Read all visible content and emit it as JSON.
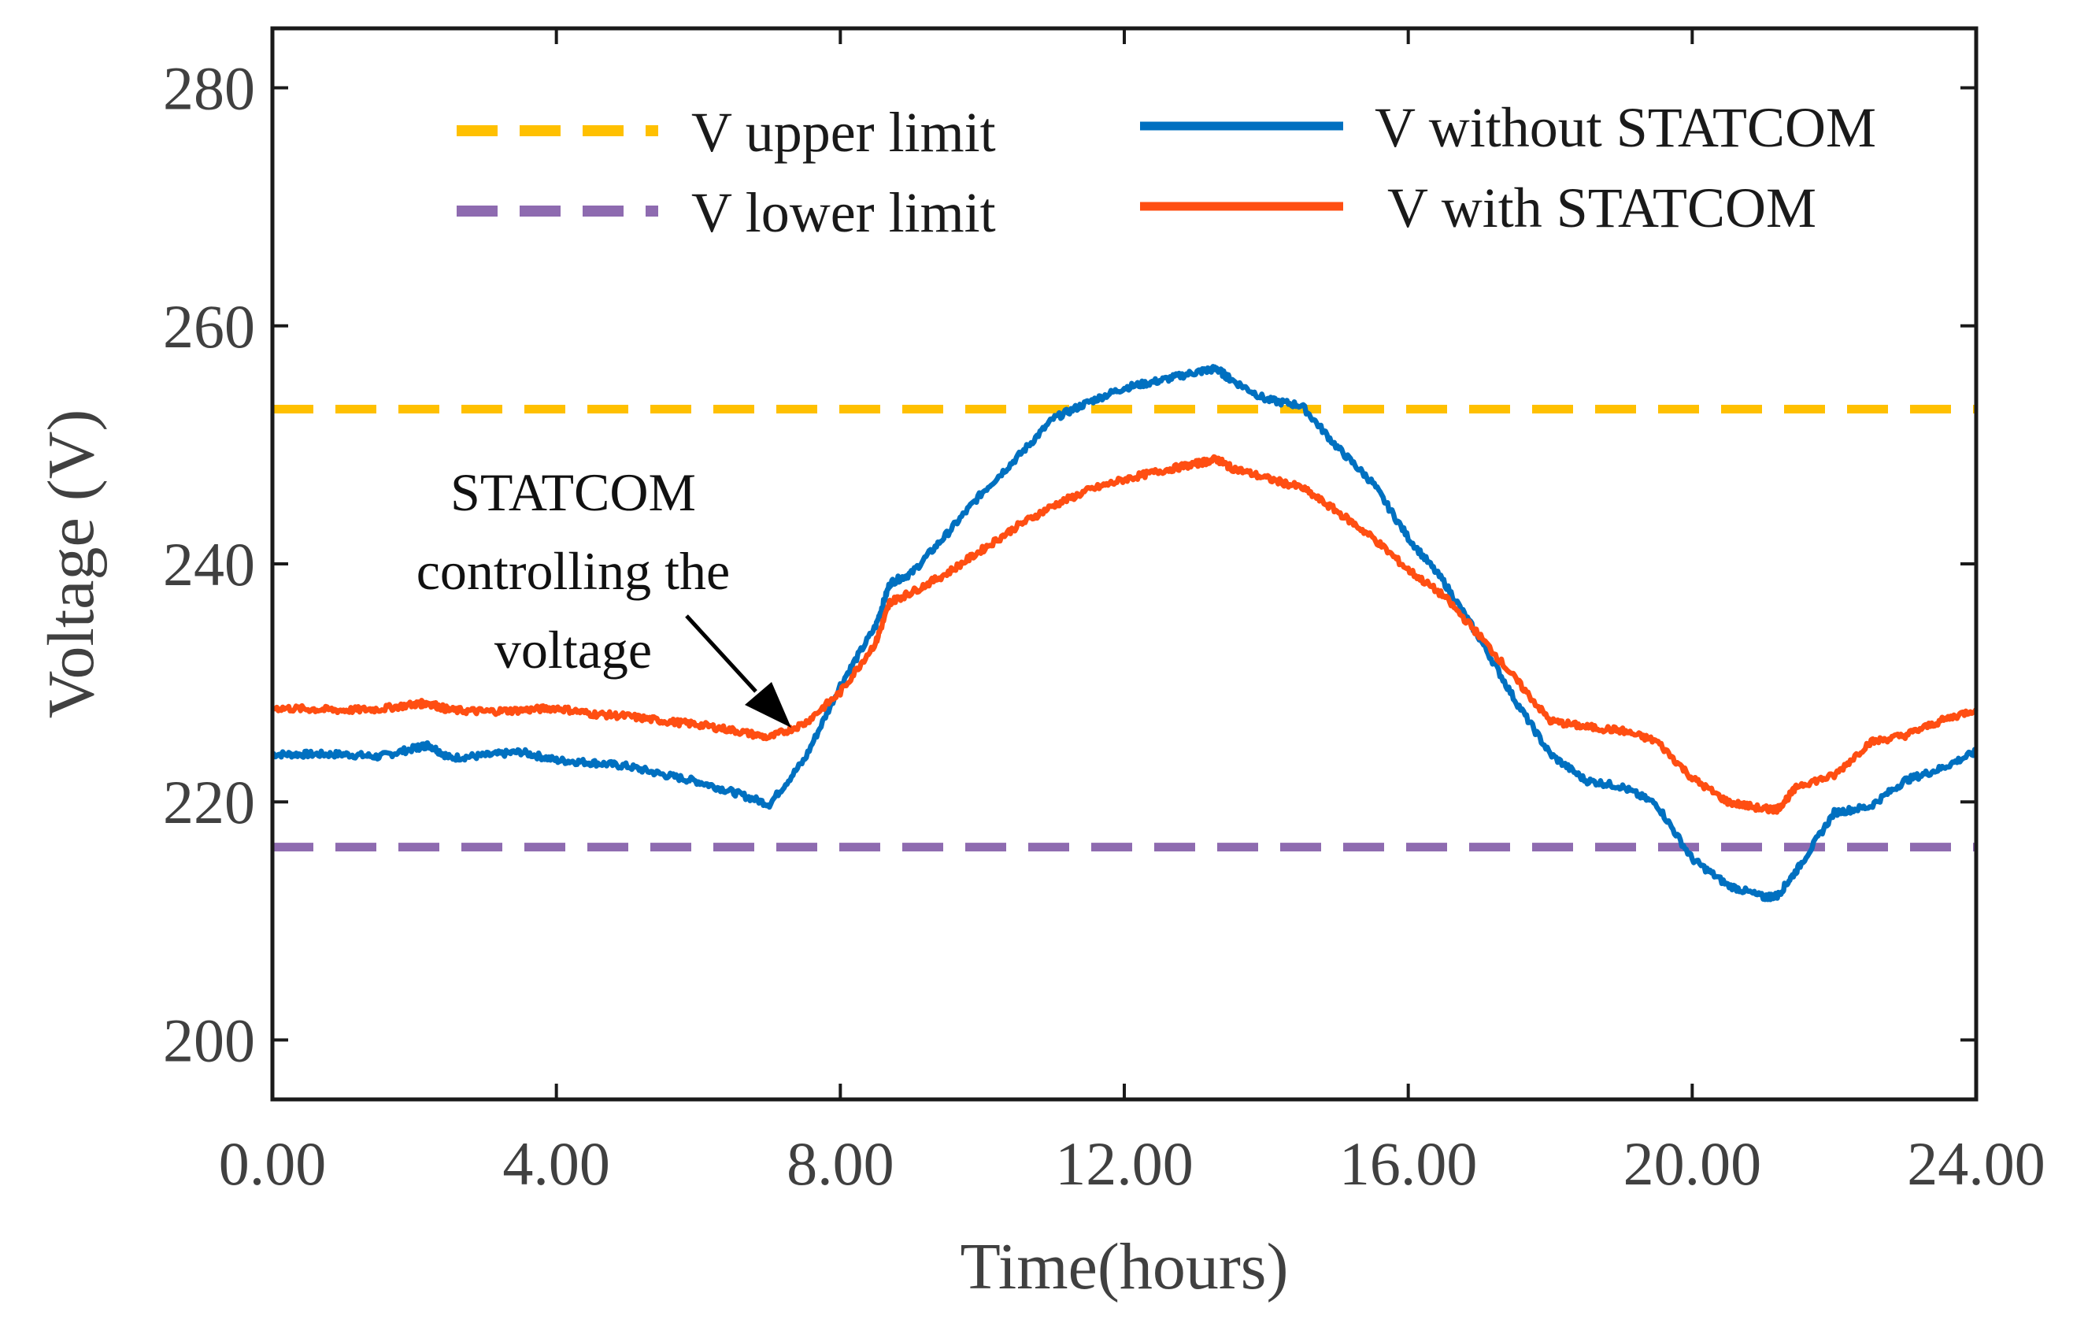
{
  "chart_data": {
    "type": "line",
    "title": "",
    "xlabel": "Time(hours)",
    "ylabel": "Voltage (V)",
    "xlim": [
      0,
      24
    ],
    "ylim": [
      195,
      285
    ],
    "x_ticks": [
      0,
      4,
      8,
      12,
      16,
      20,
      24
    ],
    "x_tick_labels": [
      "0.00",
      "4.00",
      "8.00",
      "12.00",
      "16.00",
      "20.00",
      "24.00"
    ],
    "y_ticks": [
      200,
      220,
      240,
      260,
      280
    ],
    "y_tick_labels": [
      "200",
      "220",
      "240",
      "260",
      "280"
    ],
    "grid": false,
    "legend_position": "top",
    "series": [
      {
        "name": "V upper limit",
        "style": "dashed",
        "color": "#FFC000",
        "x": [
          0,
          24
        ],
        "values": [
          253,
          253
        ]
      },
      {
        "name": "V lower limit",
        "style": "dashed",
        "color": "#8E6BB0",
        "x": [
          0,
          24
        ],
        "values": [
          216.2,
          216.2
        ]
      },
      {
        "name": "V without STATCOM",
        "style": "solid",
        "color": "#0070C0",
        "x": [
          0,
          0.5,
          1,
          1.5,
          2,
          2.2,
          2.5,
          3,
          3.5,
          4,
          4.5,
          5,
          5.5,
          6,
          6.5,
          7,
          7.5,
          8,
          8.5,
          8.7,
          9,
          9.5,
          10,
          10.5,
          11,
          11.5,
          12,
          12.5,
          13,
          13.3,
          13.5,
          14,
          14.5,
          15,
          15.5,
          16,
          16.5,
          17,
          17.5,
          18,
          18.5,
          19,
          19.5,
          20,
          20.5,
          21,
          21.2,
          21.5,
          22,
          22.5,
          23,
          23.5,
          24
        ],
        "values": [
          224,
          224,
          224,
          223.8,
          224.5,
          224.8,
          223.7,
          223.9,
          224.2,
          223.5,
          223.3,
          223,
          222.3,
          221.7,
          220.8,
          219.8,
          223.6,
          229.8,
          234.8,
          238.4,
          239.2,
          242.5,
          246,
          249,
          252.2,
          253.6,
          254.8,
          255.4,
          256.1,
          256.4,
          255.5,
          253.8,
          253.3,
          249.8,
          246.8,
          242.2,
          238.5,
          233.8,
          228.6,
          224,
          221.8,
          221.3,
          219.8,
          215.2,
          213,
          212,
          212.1,
          214.5,
          219.1,
          219.6,
          221.8,
          222.8,
          224.2
        ]
      },
      {
        "name": "V with STATCOM",
        "style": "solid",
        "color": "#FF4E12",
        "x": [
          0,
          0.5,
          1,
          1.5,
          2,
          2.2,
          2.5,
          3,
          3.5,
          4,
          4.5,
          5,
          5.5,
          6,
          6.5,
          7,
          7.5,
          8,
          8.5,
          8.7,
          9,
          9.5,
          10,
          10.5,
          11,
          11.5,
          12,
          12.5,
          13,
          13.3,
          13.5,
          14,
          14.5,
          15,
          15.5,
          16,
          16.5,
          17,
          17.5,
          18,
          18.5,
          19,
          19.5,
          20,
          20.5,
          21,
          21.2,
          21.5,
          22,
          22.5,
          23,
          23.5,
          24
        ],
        "values": [
          227.9,
          227.8,
          227.7,
          227.8,
          228.2,
          228.3,
          227.7,
          227.6,
          227.7,
          227.9,
          227.4,
          227.2,
          226.8,
          226.5,
          226,
          225.4,
          226.6,
          229.2,
          233.4,
          236.8,
          237.6,
          239.2,
          241.2,
          243.2,
          244.9,
          246.2,
          247.1,
          247.8,
          248.4,
          248.8,
          248.1,
          247.2,
          246.4,
          244.4,
          242.2,
          239.5,
          237.3,
          234,
          230.4,
          226.8,
          226.3,
          226,
          225.1,
          222,
          220,
          219.4,
          219.4,
          221.4,
          222.2,
          225,
          225.6,
          226.8,
          227.8
        ]
      }
    ],
    "annotations": [
      {
        "text_lines": [
          "STATCOM",
          "controlling the",
          "voltage"
        ],
        "points_to": {
          "x": 7.3,
          "y": 226.6
        }
      }
    ]
  }
}
